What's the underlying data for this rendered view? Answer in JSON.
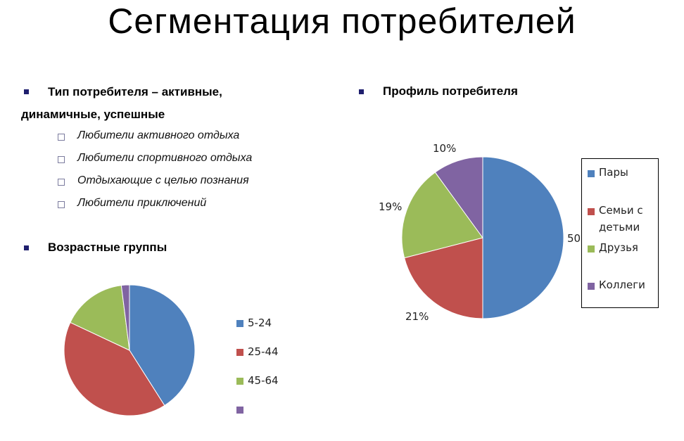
{
  "title": "Сегментация потребителей",
  "left_block": {
    "heading_line1": "Тип потребителя – активные,",
    "heading_line2": "динамичные, успешные",
    "sub_items": [
      "Любители активного отдыха",
      "Любители спортивного отдыха",
      "Отдыхающие с целью познания",
      "Любители приключений"
    ],
    "age_heading": "Возрастные группы"
  },
  "right_block": {
    "heading": "Профиль потребителя"
  },
  "chart_data": [
    {
      "type": "pie",
      "categories": [
        "5-24",
        "25-44",
        "45-64",
        ""
      ],
      "values": [
        41,
        41,
        16,
        2
      ],
      "colors": [
        "#4f81bd",
        "#c0504d",
        "#9bbb59",
        "#8064a2"
      ],
      "legend_placement": "right"
    },
    {
      "type": "pie",
      "categories": [
        "Пары",
        "Семьи с детьми",
        "Друзья",
        "Коллеги"
      ],
      "legend_lines": [
        [
          "Пары"
        ],
        [
          "Семьи с",
          "детьми"
        ],
        [
          "Друзья"
        ],
        [
          "Коллеги"
        ]
      ],
      "values": [
        50,
        21,
        19,
        10
      ],
      "data_labels": [
        "50",
        "21%",
        "19%",
        "10%"
      ],
      "colors": [
        "#4f81bd",
        "#c0504d",
        "#9bbb59",
        "#8064a2"
      ],
      "legend_placement": "right"
    }
  ]
}
